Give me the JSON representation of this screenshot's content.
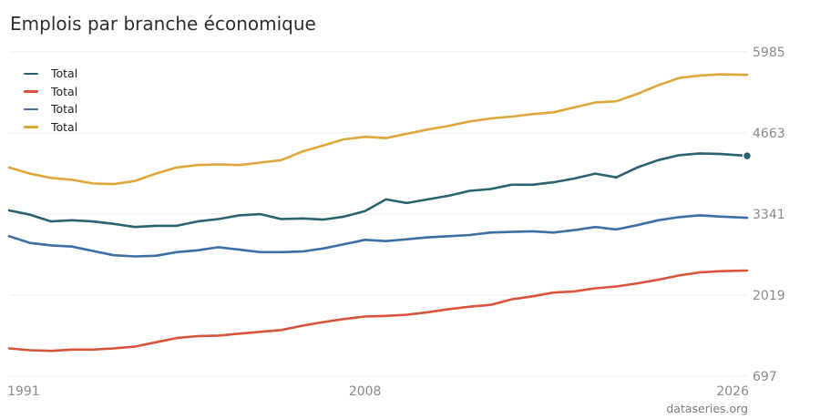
{
  "chart_data": {
    "type": "line",
    "title": "Emplois par branche économique",
    "source": "dataseries.org",
    "x_tick_labels": [
      "1991",
      "2008",
      "2026"
    ],
    "xlim": [
      1991,
      2026.25
    ],
    "y_tick_labels": [
      "5985",
      "4663",
      "3341",
      "2019",
      "697"
    ],
    "ylim": [
      697,
      5985
    ],
    "grid": true,
    "legend_position": "top-left",
    "colors": [
      "#2b6270",
      "#d9523a",
      "#3d6fa6",
      "#dfa63a"
    ],
    "series": [
      {
        "name": "Total",
        "color": "#2b6270",
        "x": [
          1991,
          1992,
          1993,
          1994,
          1995,
          1996,
          1997,
          1998,
          1999,
          2000,
          2001,
          2002,
          2003,
          2004,
          2005,
          2006,
          2007,
          2008,
          2009,
          2010,
          2011,
          2012,
          2013,
          2014,
          2015,
          2016,
          2017,
          2018,
          2019,
          2020,
          2021,
          2022,
          2023,
          2024,
          2025,
          2026.25
        ],
        "values": [
          3400,
          3330,
          3220,
          3240,
          3220,
          3180,
          3130,
          3150,
          3150,
          3220,
          3260,
          3320,
          3340,
          3260,
          3270,
          3250,
          3300,
          3390,
          3580,
          3520,
          3580,
          3640,
          3720,
          3750,
          3820,
          3820,
          3860,
          3920,
          4000,
          3940,
          4100,
          4220,
          4300,
          4330,
          4320,
          4290
        ]
      },
      {
        "name": "Total",
        "color": "#d9523a",
        "x": [
          1991,
          1992,
          1993,
          1994,
          1995,
          1996,
          1997,
          1998,
          1999,
          2000,
          2001,
          2002,
          2003,
          2004,
          2005,
          2006,
          2007,
          2008,
          2009,
          2010,
          2011,
          2012,
          2013,
          2014,
          2015,
          2016,
          2017,
          2018,
          2019,
          2020,
          2021,
          2022,
          2023,
          2024,
          2025,
          2026.25
        ],
        "values": [
          1150,
          1120,
          1110,
          1130,
          1130,
          1150,
          1180,
          1250,
          1320,
          1350,
          1360,
          1390,
          1420,
          1450,
          1520,
          1580,
          1630,
          1670,
          1680,
          1700,
          1740,
          1790,
          1830,
          1860,
          1950,
          2000,
          2060,
          2080,
          2130,
          2160,
          2210,
          2270,
          2340,
          2390,
          2410,
          2420
        ]
      },
      {
        "name": "Total",
        "color": "#3d6fa6",
        "x": [
          1991,
          1992,
          1993,
          1994,
          1995,
          1996,
          1997,
          1998,
          1999,
          2000,
          2001,
          2002,
          2003,
          2004,
          2005,
          2006,
          2007,
          2008,
          2009,
          2010,
          2011,
          2012,
          2013,
          2014,
          2015,
          2016,
          2017,
          2018,
          2019,
          2020,
          2021,
          2022,
          2023,
          2024,
          2025,
          2026.25
        ],
        "values": [
          2980,
          2870,
          2830,
          2810,
          2740,
          2670,
          2650,
          2660,
          2720,
          2750,
          2800,
          2760,
          2720,
          2720,
          2730,
          2780,
          2850,
          2920,
          2900,
          2930,
          2960,
          2980,
          3000,
          3040,
          3050,
          3060,
          3040,
          3080,
          3130,
          3090,
          3160,
          3240,
          3290,
          3320,
          3300,
          3280
        ]
      },
      {
        "name": "Total",
        "color": "#dfa63a",
        "x": [
          1991,
          1992,
          1993,
          1994,
          1995,
          1996,
          1997,
          1998,
          1999,
          2000,
          2001,
          2002,
          2003,
          2004,
          2005,
          2006,
          2007,
          2008,
          2009,
          2010,
          2011,
          2012,
          2013,
          2014,
          2015,
          2016,
          2017,
          2018,
          2019,
          2020,
          2021,
          2022,
          2023,
          2024,
          2025,
          2026.25
        ],
        "values": [
          4100,
          4000,
          3930,
          3900,
          3840,
          3830,
          3880,
          4000,
          4100,
          4140,
          4150,
          4140,
          4180,
          4220,
          4360,
          4460,
          4560,
          4600,
          4580,
          4650,
          4720,
          4780,
          4850,
          4900,
          4930,
          4970,
          5000,
          5080,
          5160,
          5180,
          5300,
          5440,
          5560,
          5600,
          5620,
          5610
        ]
      }
    ]
  }
}
